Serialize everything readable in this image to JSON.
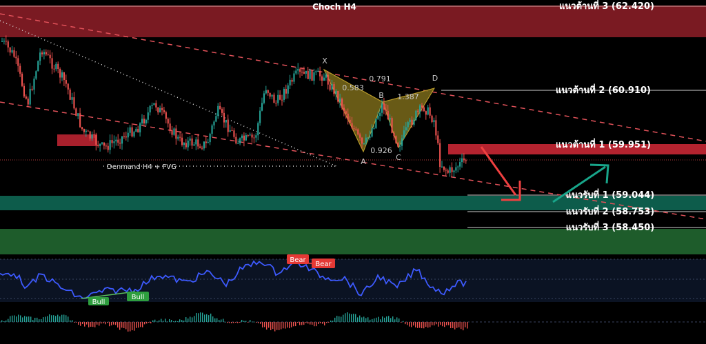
{
  "chart_data": {
    "type": "candlestick",
    "title": "Choch H4",
    "resistance_zone_label": "แนวต้านที่ 3 (62.420)",
    "levels": [
      {
        "name": "แนวต้านที่ 3",
        "value": 62.42,
        "label": "แนวต้านที่ 3 (62.420)"
      },
      {
        "name": "แนวต้านที่ 2",
        "value": 60.91,
        "label": "แนวต้านที่ 2 (60.910)"
      },
      {
        "name": "แนวต้านที่ 1",
        "value": 59.951,
        "label": "แนวต้านที่ 1 (59.951)"
      },
      {
        "name": "แนวรับที่ 1",
        "value": 59.044,
        "label": "แนวรับที่ 1 (59.044)"
      },
      {
        "name": "แนวรับที่ 2",
        "value": 58.753,
        "label": "แนวรับที่ 2 (58.753)"
      },
      {
        "name": "แนวรับที่ 3",
        "value": 58.45,
        "label": "แนวรับที่ 3 (58.450)"
      }
    ],
    "annotations": {
      "demand_label": "Denmand H4 + FVG",
      "harmonic_points": [
        "X",
        "A",
        "B",
        "C",
        "D"
      ],
      "harmonic_ratios": [
        "0.583",
        "0.791",
        "1.387",
        "0.926"
      ]
    },
    "indicator": {
      "signals": [
        "Bear",
        "Bear",
        "Bull",
        "Bull"
      ]
    },
    "colors": {
      "bull": "#26a69a",
      "bear": "#ef5350",
      "resistance_zone": "#8b1c24",
      "support_zone": "#0d5a4a",
      "support_zone_2": "#1f5e2c",
      "harmonic_fill": "#7a6a1a",
      "rsi_line": "#3d5afe",
      "arrow_down": "#ef4040",
      "arrow_up": "#18a58a"
    }
  }
}
